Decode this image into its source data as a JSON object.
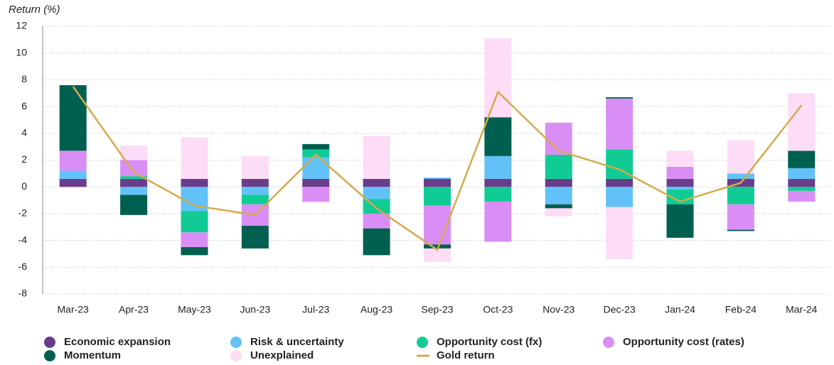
{
  "chart_data": {
    "type": "bar",
    "stacked": true,
    "y_axis_label": "Return (%)",
    "categories": [
      "Mar-23",
      "Apr-23",
      "May-23",
      "Jun-23",
      "Jul-23",
      "Aug-23",
      "Sep-23",
      "Oct-23",
      "Nov-23",
      "Dec-23",
      "Jan-24",
      "Feb-24",
      "Mar-24"
    ],
    "series": [
      {
        "name": "Economic expansion",
        "color": "#6a3d8c",
        "values": [
          0.6,
          0.6,
          0.6,
          0.6,
          0.6,
          0.6,
          0.6,
          0.6,
          0.6,
          0.6,
          0.6,
          0.6,
          0.6
        ]
      },
      {
        "name": "Risk & uncertainty",
        "color": "#62c2f7",
        "values": [
          0.6,
          -0.6,
          -1.8,
          -0.6,
          1.6,
          -0.9,
          0.1,
          1.7,
          -1.3,
          -1.5,
          -0.2,
          0.4,
          0.8
        ]
      },
      {
        "name": "Opportunity cost (fx)",
        "color": "#10cc94",
        "values": [
          0,
          0.2,
          -1.6,
          -0.7,
          0.6,
          -1.1,
          -1.4,
          -1.1,
          1.8,
          2.2,
          -1.1,
          -1.3,
          -0.3
        ]
      },
      {
        "name": "Opportunity cost (rates)",
        "color": "#d98ef5",
        "values": [
          1.5,
          1.2,
          -1.1,
          -1.6,
          -1.1,
          -1.1,
          -2.9,
          -3.0,
          2.4,
          3.8,
          0.9,
          -1.9,
          -0.8
        ]
      },
      {
        "name": "Momentum",
        "color": "#00604f",
        "values": [
          4.9,
          -1.5,
          -0.6,
          -1.7,
          0.4,
          -2.0,
          -0.3,
          2.9,
          -0.3,
          0.1,
          -2.5,
          -0.1,
          1.3
        ]
      },
      {
        "name": "Unexplained",
        "color": "#fddcf6",
        "values": [
          -0.1,
          1.1,
          3.1,
          1.7,
          -0.1,
          3.2,
          -1.0,
          5.9,
          -0.6,
          -3.9,
          1.2,
          2.5,
          4.3
        ]
      },
      {
        "name": "Gold return",
        "color": "#d4aa4c",
        "type": "line",
        "values": [
          7.5,
          1.1,
          -1.4,
          -2.1,
          2.4,
          -1.6,
          -4.7,
          7.1,
          2.7,
          1.3,
          -1.1,
          0.3,
          6.1
        ]
      }
    ],
    "ylim": [
      -8,
      12
    ],
    "yticks": [
      -8,
      -6,
      -4,
      -2,
      0,
      2,
      4,
      6,
      8,
      10,
      12
    ],
    "grid": true,
    "legend": "bottom"
  }
}
